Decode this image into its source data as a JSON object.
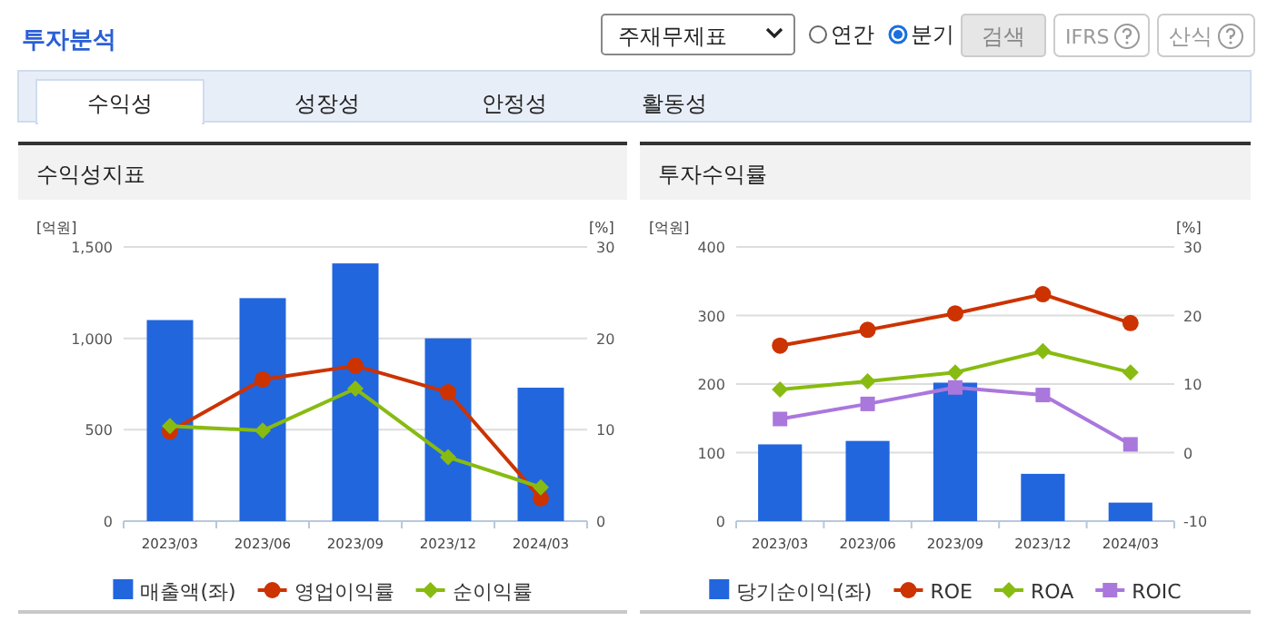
{
  "chart_data": [
    {
      "type": "other",
      "title": "투자분석",
      "annotations": [
        "주재무제표",
        "연간",
        "분기",
        "검색",
        "IFRS",
        "산식",
        "수익성",
        "성장성",
        "안정성",
        "활동성"
      ]
    },
    {
      "type": "bar",
      "title": "수익성지표",
      "ylabel": "[억원]",
      "y2label": "[%]",
      "categories": [
        "2023/03",
        "2023/06",
        "2023/09",
        "2023/12",
        "2024/03"
      ],
      "ylim": [
        0,
        1500
      ],
      "yticks": [
        0,
        500,
        {
          "value": 1000,
          "label": "1,000"
        },
        {
          "value": 1500,
          "label": "1,500"
        }
      ],
      "y2lim": [
        0,
        30
      ],
      "y2ticks": [
        0,
        10,
        20,
        30
      ],
      "grid": "y",
      "legend": "bottom",
      "series": [
        {
          "name": "매출액(좌)",
          "type": "bar",
          "color": "#2266dd",
          "values": [
            1100,
            1220,
            1410,
            1000,
            730
          ]
        },
        {
          "name": "영업이익률",
          "type": "line",
          "axis": "y2",
          "marker": "circle",
          "color": "#cc3300",
          "values": [
            9.8,
            15.5,
            17.0,
            14.1,
            2.5
          ]
        },
        {
          "name": "순이익률",
          "type": "line",
          "axis": "y2",
          "marker": "diamond",
          "color": "#88bb11",
          "values": [
            10.4,
            9.9,
            14.5,
            7.0,
            3.7
          ]
        }
      ]
    },
    {
      "type": "bar",
      "title": "투자수익률",
      "ylabel": "[억원]",
      "y2label": "[%]",
      "categories": [
        "2023/03",
        "2023/06",
        "2023/09",
        "2023/12",
        "2024/03"
      ],
      "ylim": [
        0,
        400
      ],
      "yticks": [
        0,
        100,
        200,
        300,
        400
      ],
      "y2lim": [
        -10,
        30
      ],
      "y2ticks": [
        -10,
        0,
        10,
        20,
        30
      ],
      "grid": "y",
      "legend": "bottom",
      "series": [
        {
          "name": "당기순이익(좌)",
          "type": "bar",
          "color": "#2266dd",
          "values": [
            112,
            117,
            202,
            69,
            27
          ]
        },
        {
          "name": "ROE",
          "type": "line",
          "axis": "y2",
          "marker": "circle",
          "color": "#cc3300",
          "values": [
            15.6,
            17.9,
            20.3,
            23.1,
            18.9
          ]
        },
        {
          "name": "ROA",
          "type": "line",
          "axis": "y2",
          "marker": "diamond",
          "color": "#88bb11",
          "values": [
            9.2,
            10.4,
            11.7,
            14.8,
            11.7
          ]
        },
        {
          "name": "ROIC",
          "type": "line",
          "axis": "y2",
          "marker": "square",
          "color": "#aa77dd",
          "values": [
            4.9,
            7.1,
            9.5,
            8.4,
            1.2
          ]
        }
      ]
    }
  ]
}
